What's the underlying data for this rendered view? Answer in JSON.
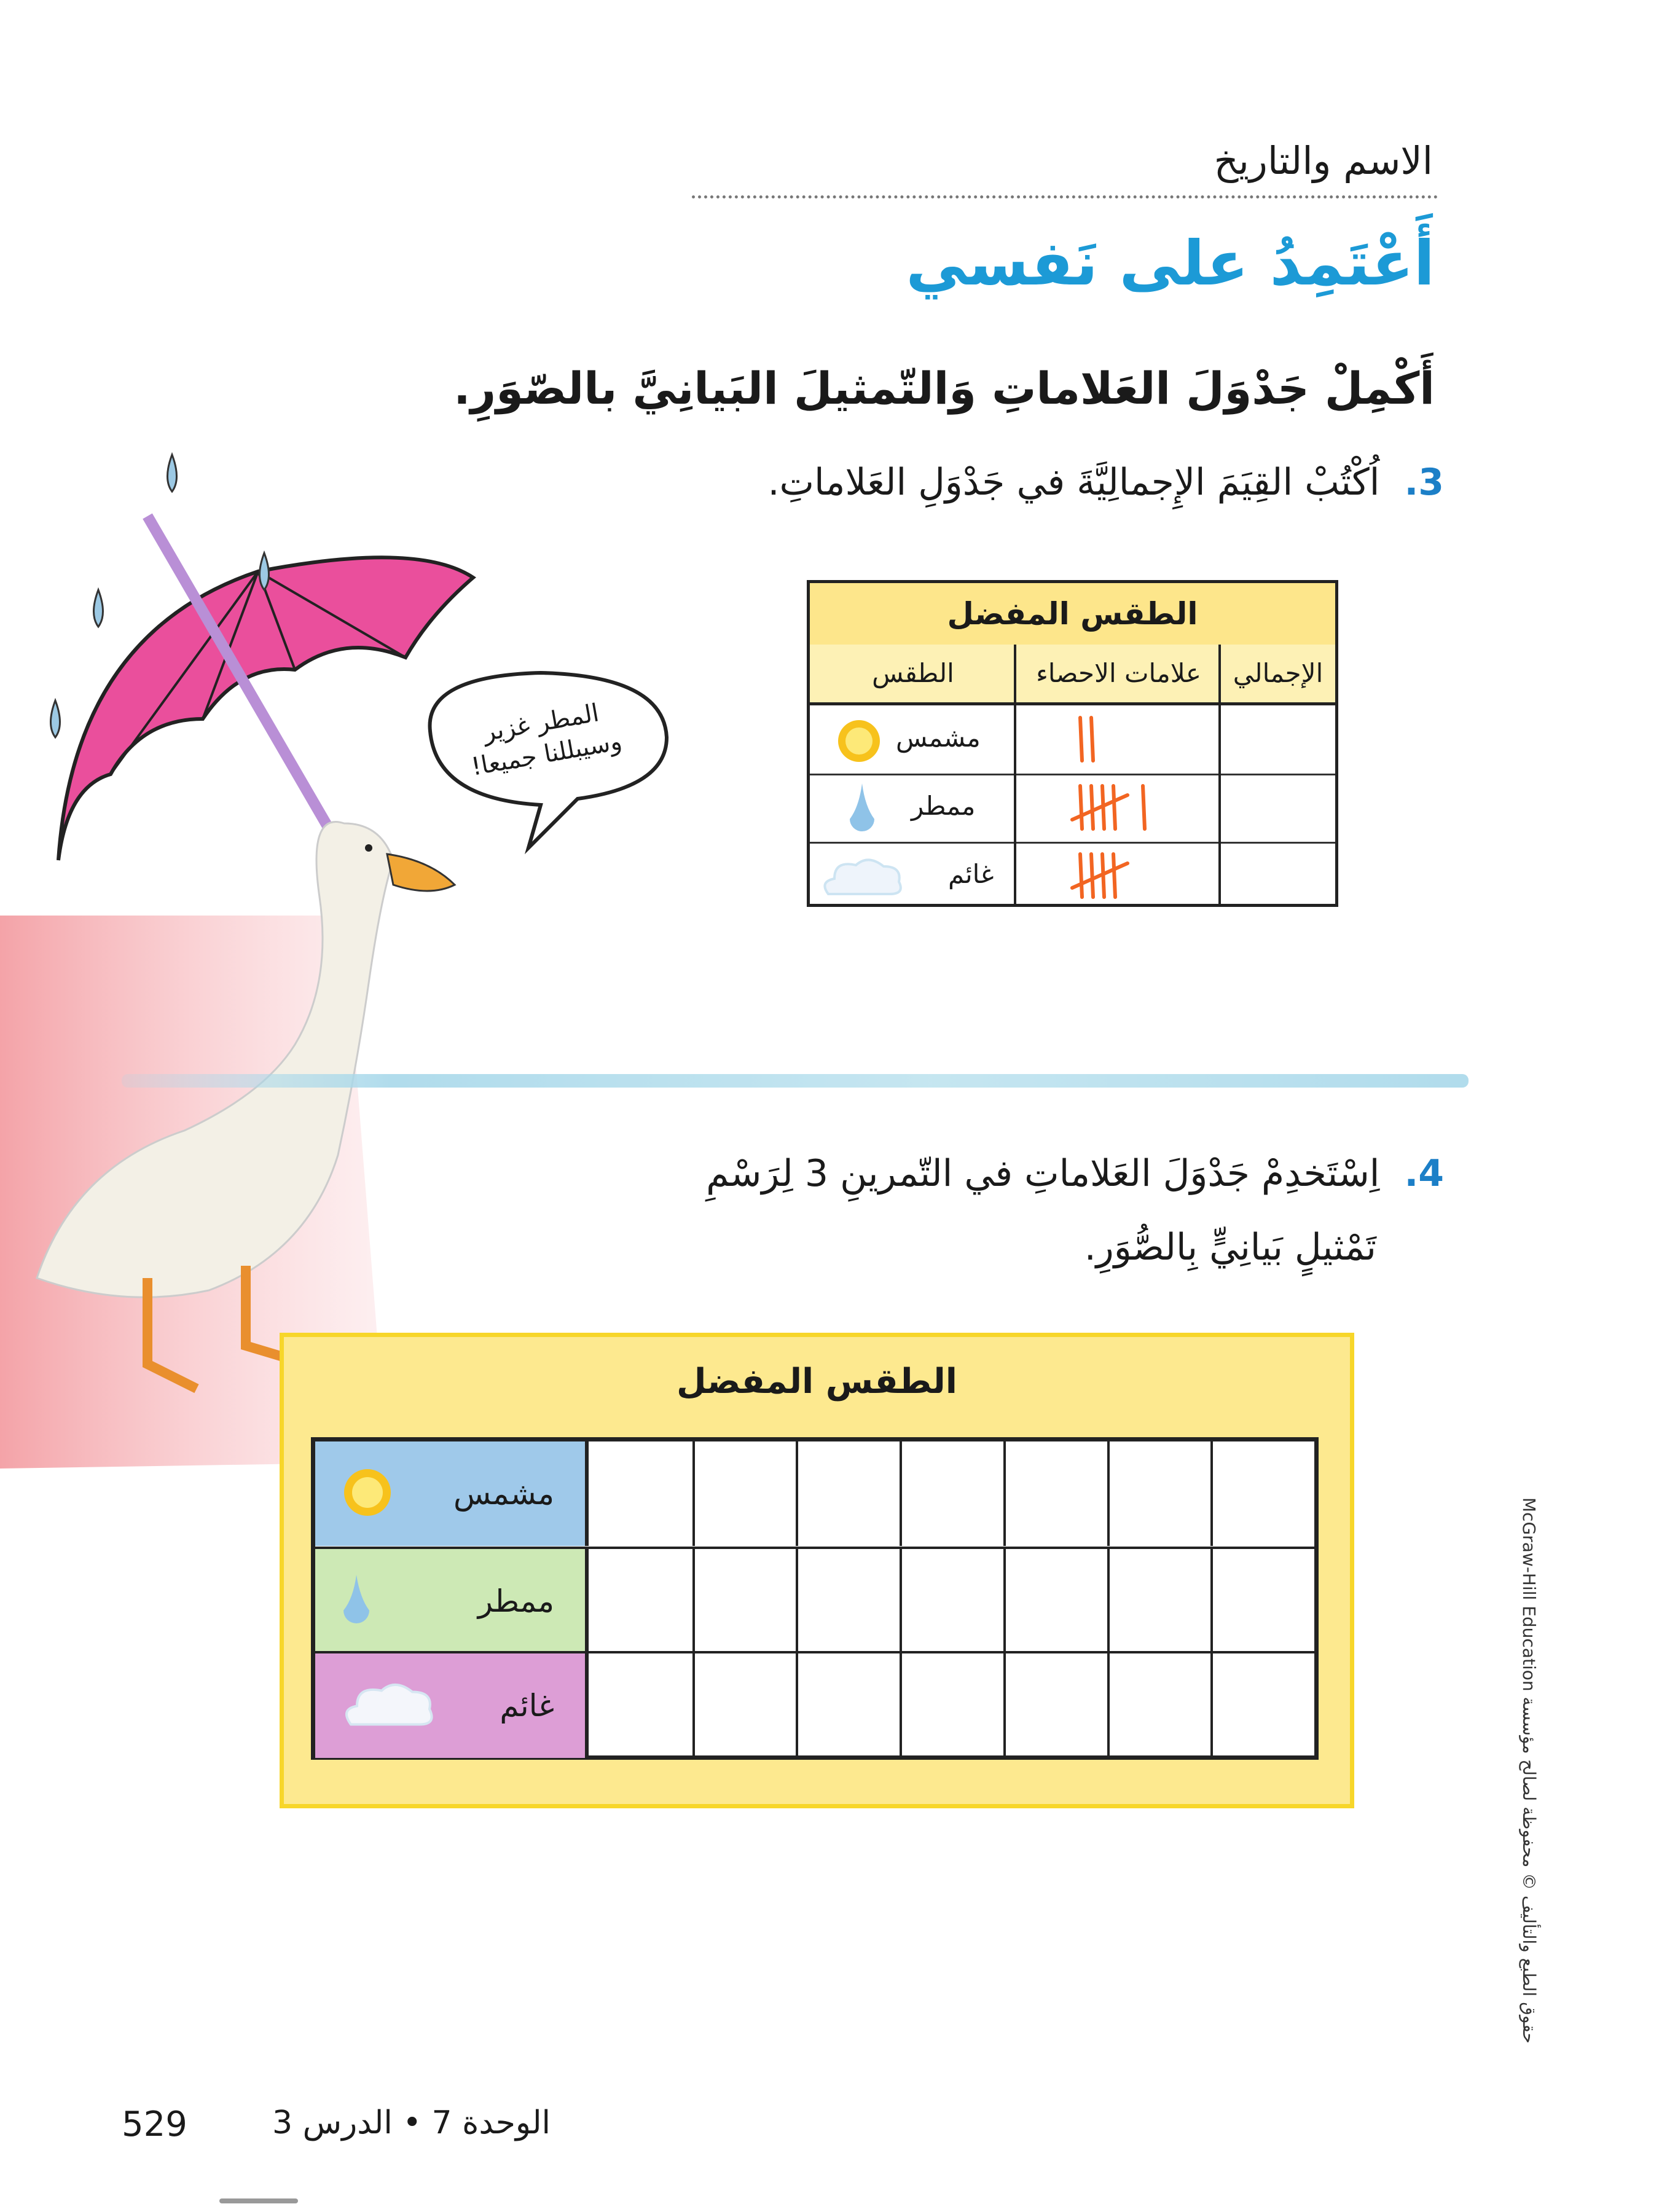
{
  "header": {
    "name_date_label": "الاسم والتاريخ"
  },
  "title": "أَعْتَمِدُ على نَفسي",
  "instruction": "أَكْمِلْ جَدْوَلَ العَلاماتِ وَالتّمثيلَ البَيانِيَّ بالصّوَرِ.",
  "question3": {
    "number": "3.",
    "text": "اُكْتُبْ القِيَمَ الإِجمالِيَّةَ في جَدْوَلِ العَلاماتِ."
  },
  "speech_bubble": {
    "line1": "المطر غزير",
    "line2": "وسيبللنا جميعا!"
  },
  "tally_table": {
    "title": "الطقس المفضل",
    "columns": [
      "الطقس",
      "علامات الاحصاء",
      "الإجمالي"
    ],
    "rows": [
      {
        "weather": "مشمس",
        "icon": "sun-icon",
        "tally": 2,
        "total": ""
      },
      {
        "weather": "ممطر",
        "icon": "raindrop-icon",
        "tally": 6,
        "total": ""
      },
      {
        "weather": "غائم",
        "icon": "cloud-icon",
        "tally": 5,
        "total": ""
      }
    ],
    "tally_color": "#f26522"
  },
  "question4": {
    "number": "4.",
    "line1": "اِسْتَخدِمْ جَدْوَلَ العَلاماتِ في التّمرينِ 3 لِرَسْمِ",
    "line2": "تَمْثيلٍ بَيانِيٍّ بِالصُّوَرِ."
  },
  "pictograph": {
    "title": "الطقس المفضل",
    "rows": [
      {
        "label": "مشمس",
        "icon": "sun-icon",
        "color": "#9fc9ea"
      },
      {
        "label": "ممطر",
        "icon": "raindrop-icon",
        "color": "#cde9b5"
      },
      {
        "label": "غائم",
        "icon": "cloud-icon",
        "color": "#dd9ed6"
      }
    ],
    "empty_cells_per_row": 7
  },
  "footer": {
    "page_number": "529",
    "unit_lesson": "الوحدة 7 • الدرس 3"
  },
  "copyright": "حقوق الطبع والتأليف © محفوظة لصالح مؤسسة McGraw-Hill Education",
  "colors": {
    "title_blue": "#1c9ad6",
    "table_yellow": "#fde68b",
    "umbrella_pink": "#ea4f9c"
  }
}
